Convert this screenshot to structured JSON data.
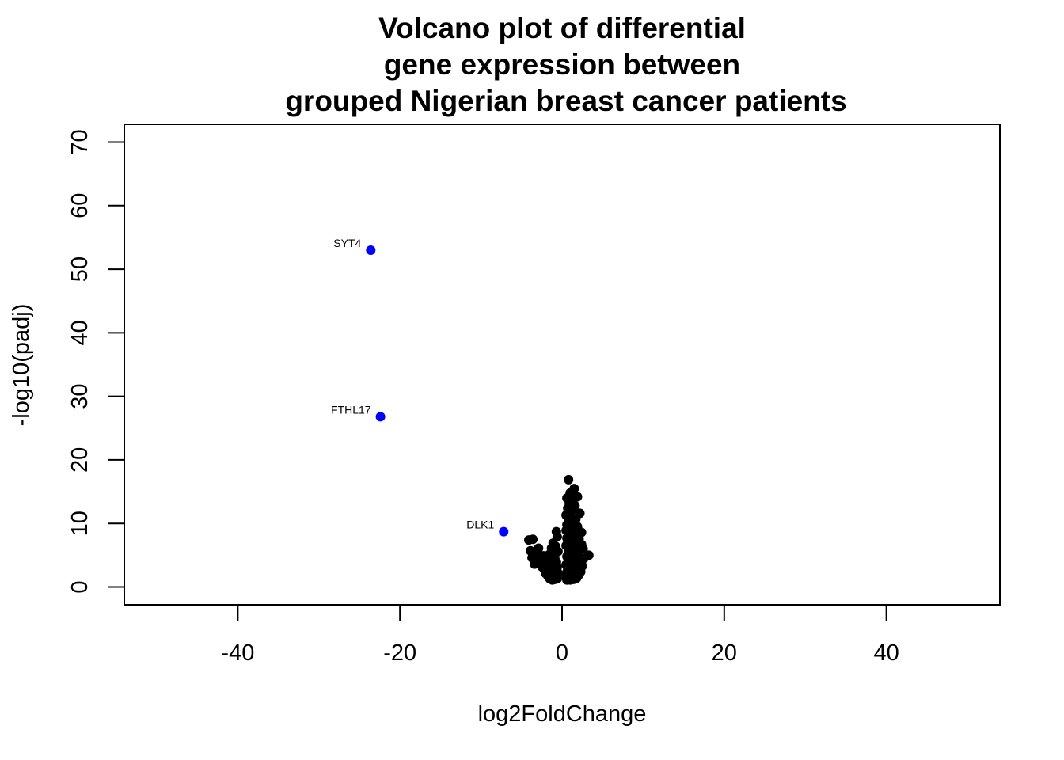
{
  "chart_data": {
    "type": "scatter",
    "title_lines": [
      "Volcano plot of differential",
      "gene expression between",
      "grouped Nigerian breast cancer patients"
    ],
    "xlabel": "log2FoldChange",
    "ylabel": "-log10(padj)",
    "xlim": [
      -54,
      54
    ],
    "ylim": [
      -2.8,
      72.8
    ],
    "xticks": [
      -40,
      -20,
      0,
      20,
      40
    ],
    "xtick_labels": [
      "-40",
      "-20",
      "0",
      "20",
      "40"
    ],
    "yticks": [
      0,
      10,
      20,
      30,
      40,
      50,
      60,
      70
    ],
    "ytick_labels": [
      "0",
      "10",
      "20",
      "30",
      "40",
      "50",
      "60",
      "70"
    ],
    "grid": false,
    "colors": {
      "background_points": "#000000",
      "highlighted_points": "#0000ff"
    },
    "highlighted": [
      {
        "label": "SYT4",
        "x": -23.6,
        "y": 53.0
      },
      {
        "label": "FTHL17",
        "x": -22.4,
        "y": 26.8
      },
      {
        "label": "DLK1",
        "x": -7.2,
        "y": 8.7
      }
    ],
    "background_points": [
      [
        0.8,
        16.9
      ],
      [
        1.5,
        15.5
      ],
      [
        1.0,
        14.8
      ],
      [
        1.9,
        14.2
      ],
      [
        0.6,
        14.0
      ],
      [
        1.3,
        13.7
      ],
      [
        0.9,
        13.2
      ],
      [
        1.6,
        12.8
      ],
      [
        0.7,
        12.4
      ],
      [
        1.2,
        12.0
      ],
      [
        2.2,
        11.6
      ],
      [
        0.5,
        11.3
      ],
      [
        1.1,
        11.0
      ],
      [
        1.7,
        10.7
      ],
      [
        0.8,
        10.4
      ],
      [
        1.4,
        10.1
      ],
      [
        0.6,
        9.8
      ],
      [
        1.9,
        9.5
      ],
      [
        1.0,
        9.2
      ],
      [
        0.5,
        8.9
      ],
      [
        1.5,
        8.6
      ],
      [
        -0.7,
        8.7
      ],
      [
        2.4,
        8.6
      ],
      [
        0.9,
        8.3
      ],
      [
        1.2,
        8.0
      ],
      [
        -0.6,
        7.9
      ],
      [
        0.6,
        7.7
      ],
      [
        1.8,
        7.4
      ],
      [
        2.1,
        7.6
      ],
      [
        -3.6,
        7.5
      ],
      [
        -4.1,
        7.4
      ],
      [
        0.7,
        7.1
      ],
      [
        1.4,
        6.8
      ],
      [
        -1.1,
        6.9
      ],
      [
        2.4,
        6.7
      ],
      [
        0.5,
        6.5
      ],
      [
        -0.8,
        6.4
      ],
      [
        -1.3,
        6.1
      ],
      [
        1.1,
        6.2
      ],
      [
        2.6,
        6.0
      ],
      [
        1.6,
        5.8
      ],
      [
        -2.9,
        6.1
      ],
      [
        0.8,
        5.5
      ],
      [
        -0.5,
        5.6
      ],
      [
        -3.9,
        5.7
      ],
      [
        -3.3,
        5.4
      ],
      [
        2.0,
        5.2
      ],
      [
        1.2,
        5.0
      ],
      [
        3.3,
        5.0
      ],
      [
        -1.6,
        5.1
      ],
      [
        -2.3,
        4.9
      ],
      [
        0.6,
        4.8
      ],
      [
        -0.9,
        4.6
      ],
      [
        -3.7,
        4.6
      ],
      [
        2.7,
        4.5
      ],
      [
        1.5,
        4.4
      ],
      [
        -2.6,
        4.4
      ],
      [
        -1.4,
        4.2
      ],
      [
        0.9,
        4.1
      ],
      [
        2.2,
        4.0
      ],
      [
        -0.7,
        3.9
      ],
      [
        -3.0,
        4.0
      ],
      [
        1.7,
        3.7
      ],
      [
        -2.0,
        3.7
      ],
      [
        -3.4,
        3.6
      ],
      [
        0.5,
        3.5
      ],
      [
        -1.2,
        3.4
      ],
      [
        2.5,
        3.3
      ],
      [
        1.1,
        3.2
      ],
      [
        -2.5,
        3.2
      ],
      [
        -0.6,
        3.1
      ],
      [
        -1.8,
        3.0
      ],
      [
        1.9,
        2.9
      ],
      [
        0.7,
        2.8
      ],
      [
        -2.2,
        2.8
      ],
      [
        -1.0,
        2.6
      ],
      [
        1.3,
        2.5
      ],
      [
        2.3,
        2.4
      ],
      [
        -1.6,
        2.3
      ],
      [
        0.6,
        2.3
      ],
      [
        -0.5,
        2.2
      ],
      [
        1.6,
        2.1
      ],
      [
        -2.0,
        2.1
      ],
      [
        -1.3,
        1.9
      ],
      [
        0.9,
        1.9
      ],
      [
        2.0,
        1.8
      ],
      [
        -0.8,
        1.7
      ],
      [
        -1.7,
        1.6
      ],
      [
        1.2,
        1.6
      ],
      [
        0.5,
        1.5
      ],
      [
        -1.1,
        1.4
      ],
      [
        1.8,
        1.4
      ],
      [
        -1.5,
        1.3
      ],
      [
        -0.6,
        1.3
      ],
      [
        0.8,
        1.3
      ],
      [
        1.4,
        1.2
      ],
      [
        -0.9,
        1.2
      ],
      [
        0.6,
        1.1
      ],
      [
        -1.2,
        1.1
      ],
      [
        1.0,
        1.1
      ]
    ]
  }
}
